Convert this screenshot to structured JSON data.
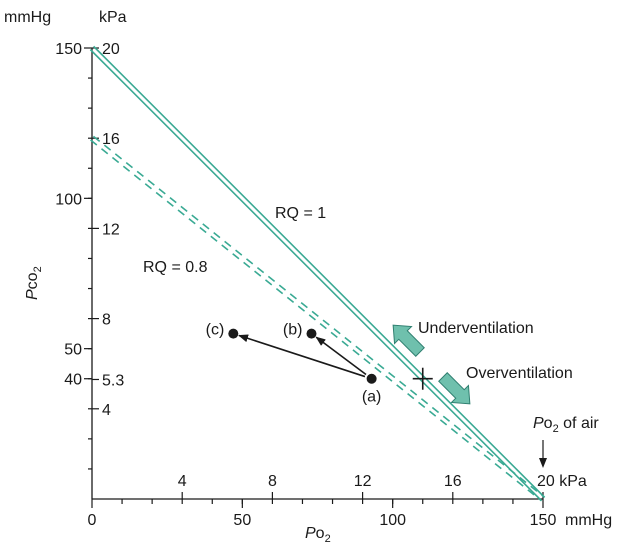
{
  "colors": {
    "rq_line": "#3aaa94",
    "arrow_fill": "#6fc0ad",
    "arrow_stroke": "#2f7f70",
    "ink": "#1a1a1a"
  },
  "chart_data": {
    "type": "line",
    "x_axis": {
      "label_main": "P",
      "label_sub": "o",
      "label_sub2": "2",
      "unit": "mmHg",
      "range": [
        0,
        150
      ],
      "ticks_mmHg": [
        "0",
        "50",
        "100",
        "150"
      ],
      "ticks_kPa": [
        "4",
        "8",
        "12",
        "16",
        "20 kPa"
      ],
      "ticks_kPa_values": [
        4,
        8,
        12,
        16,
        20
      ]
    },
    "y_axis": {
      "label_main": "P",
      "label_sub": "co",
      "label_sub2": "2",
      "unit_mmHg": "mmHg",
      "unit_kPa": "kPa",
      "range": [
        0,
        150
      ],
      "ticks_mmHg": [
        "150",
        "100",
        "50",
        "40"
      ],
      "ticks_mmHg_values": [
        150,
        100,
        50,
        40
      ],
      "ticks_kPa": [
        "20",
        "16",
        "12",
        "8",
        "5.3",
        "4"
      ],
      "ticks_kPa_values": [
        20,
        16,
        12,
        8,
        5.3,
        4
      ]
    },
    "series": [
      {
        "name": "RQ = 1",
        "style": "solid-double",
        "points": [
          [
            0,
            150
          ],
          [
            150,
            0
          ]
        ]
      },
      {
        "name": "RQ = 0.8",
        "style": "dashed-double",
        "points": [
          [
            0,
            120
          ],
          [
            150,
            0
          ]
        ]
      }
    ],
    "points": [
      {
        "label": "(a)",
        "x": 93,
        "y": 40
      },
      {
        "label": "(b)",
        "x": 73,
        "y": 55
      },
      {
        "label": "(c)",
        "x": 47,
        "y": 55
      }
    ],
    "arrows": [
      {
        "from": "(a)",
        "to": "(b)"
      },
      {
        "from": "(a)",
        "to": "(c)"
      }
    ],
    "marker": {
      "label": "+",
      "x": 110,
      "y": 40
    },
    "annotations": {
      "under": "Underventilation",
      "over": "Overventilation",
      "air_main": "P",
      "air_sub": "o",
      "air_sub2": "2",
      "air_rest": " of air"
    }
  }
}
